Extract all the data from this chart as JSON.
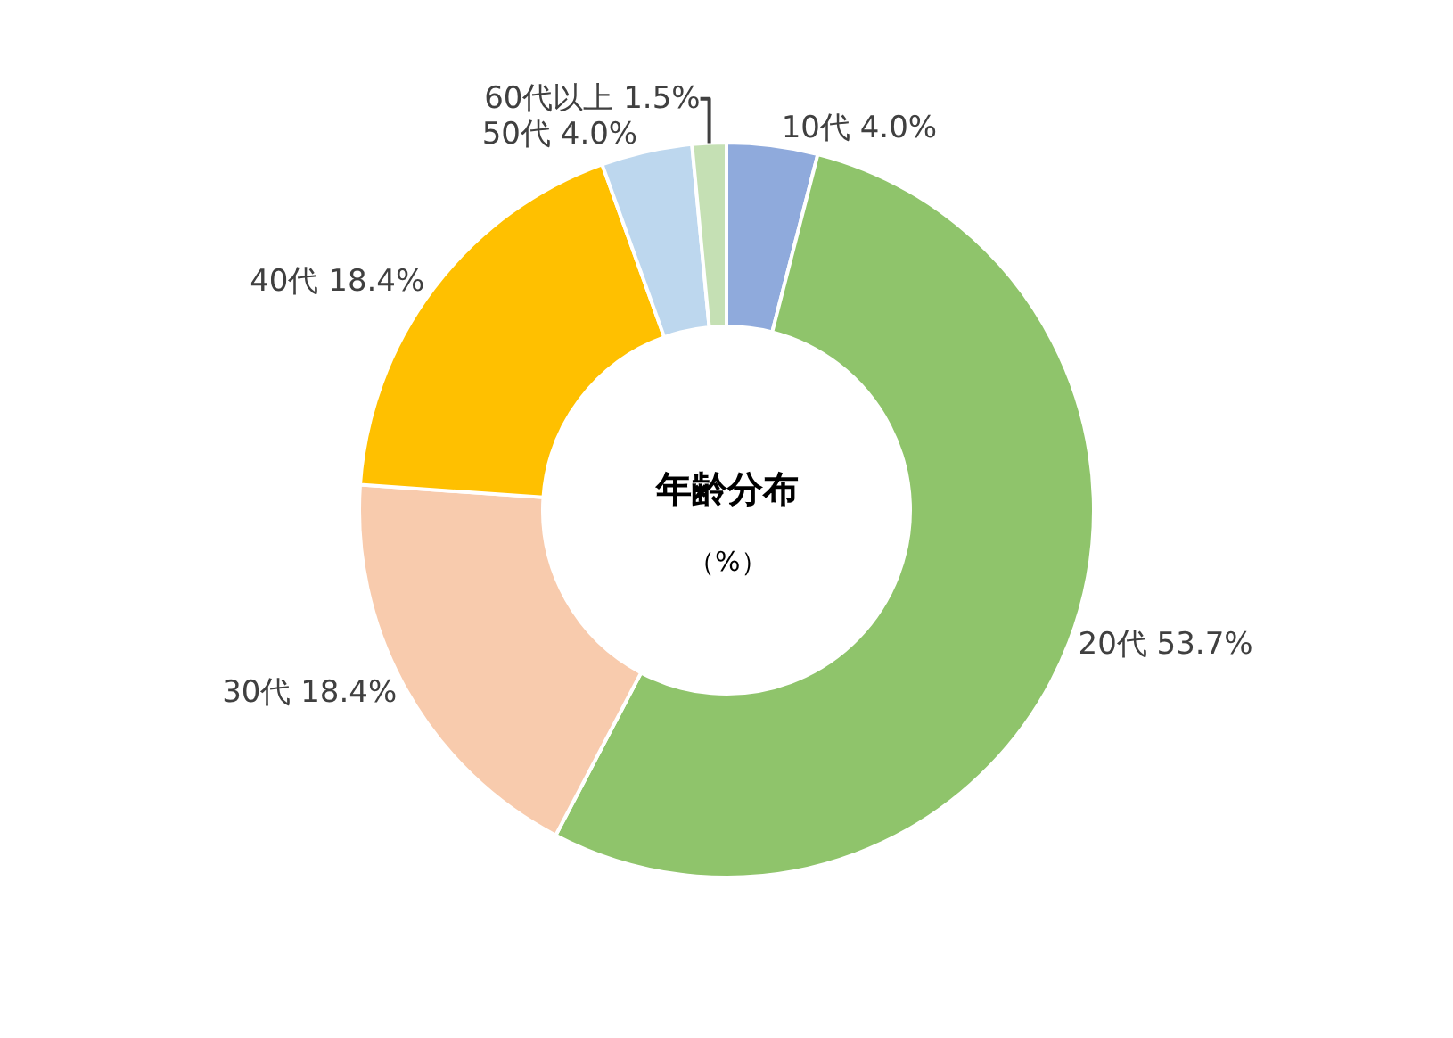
{
  "chart_data": {
    "type": "donut",
    "title": "年齢分布",
    "subtitle": "（%）",
    "categories": [
      "10代",
      "20代",
      "30代",
      "40代",
      "50代",
      "60代以上"
    ],
    "values": [
      4.0,
      53.7,
      18.4,
      18.4,
      4.0,
      1.5
    ],
    "value_labels": [
      "4.0%",
      "53.7%",
      "18.4%",
      "18.4%",
      "4.0%",
      "1.5%"
    ],
    "colors": [
      "#8faadc",
      "#8fc46b",
      "#f8cbad",
      "#ffc000",
      "#bdd7ee",
      "#c5e0b4"
    ],
    "legend": false
  }
}
